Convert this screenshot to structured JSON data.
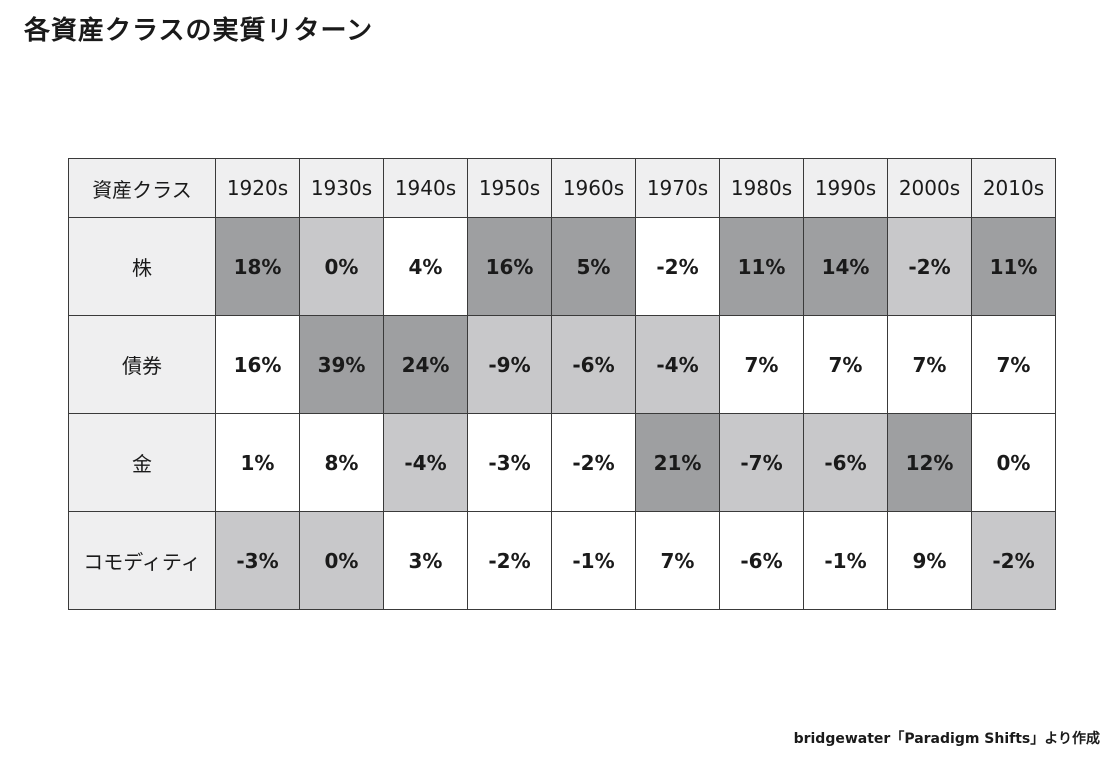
{
  "title": "各資産クラスの実質リターン",
  "source": "bridgewater「Paradigm Shifts」より作成",
  "colors": {
    "dark": "#9e9fa1",
    "light": "#c8c8ca",
    "none": "#ffffff",
    "header": "#efeff0"
  },
  "chart_data": {
    "type": "heatmap",
    "title": "各資産クラスの実質リターン",
    "corner_label": "資産クラス",
    "columns": [
      "1920s",
      "1930s",
      "1940s",
      "1950s",
      "1960s",
      "1970s",
      "1980s",
      "1990s",
      "2000s",
      "2010s"
    ],
    "rows": [
      {
        "name": "株",
        "values": [
          "18%",
          "0%",
          "4%",
          "16%",
          "5%",
          "-2%",
          "11%",
          "14%",
          "-2%",
          "11%"
        ],
        "shade": [
          "dark",
          "light",
          "none",
          "dark",
          "dark",
          "none",
          "dark",
          "dark",
          "light",
          "dark"
        ]
      },
      {
        "name": "債券",
        "values": [
          "16%",
          "39%",
          "24%",
          "-9%",
          "-6%",
          "-4%",
          "7%",
          "7%",
          "7%",
          "7%"
        ],
        "shade": [
          "none",
          "dark",
          "dark",
          "light",
          "light",
          "light",
          "none",
          "none",
          "none",
          "none"
        ]
      },
      {
        "name": "金",
        "values": [
          "1%",
          "8%",
          "-4%",
          "-3%",
          "-2%",
          "21%",
          "-7%",
          "-6%",
          "12%",
          "0%"
        ],
        "shade": [
          "none",
          "none",
          "light",
          "none",
          "none",
          "dark",
          "light",
          "light",
          "dark",
          "none"
        ]
      },
      {
        "name": "コモディティ",
        "values": [
          "-3%",
          "0%",
          "3%",
          "-2%",
          "-1%",
          "7%",
          "-6%",
          "-1%",
          "9%",
          "-2%"
        ],
        "shade": [
          "light",
          "light",
          "none",
          "none",
          "none",
          "none",
          "none",
          "none",
          "none",
          "light"
        ]
      }
    ]
  }
}
